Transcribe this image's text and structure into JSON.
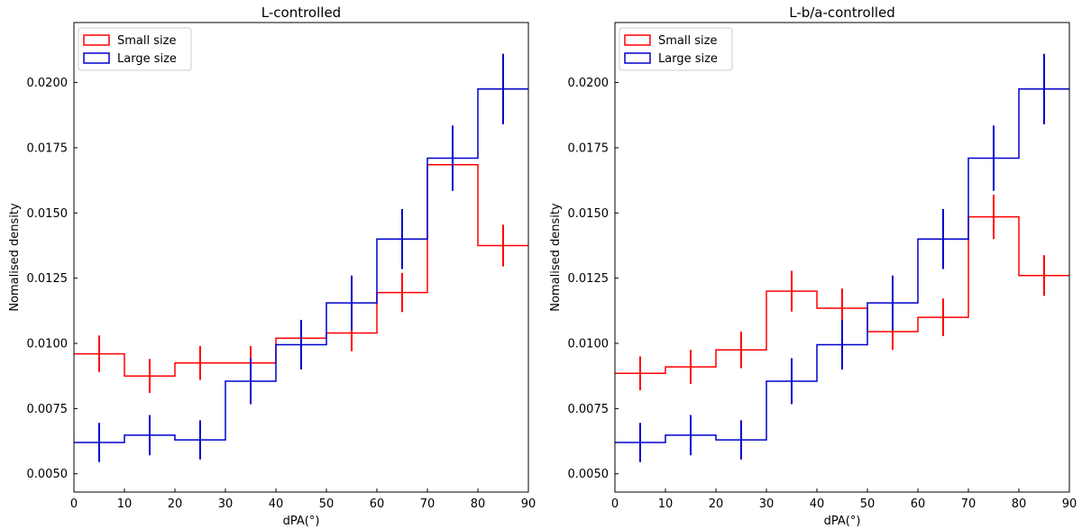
{
  "chart_data": [
    {
      "type": "step",
      "title": "L-controlled",
      "xlabel": "dPA(°)",
      "ylabel": "Nomalised density",
      "xlim": [
        0,
        90
      ],
      "ylim": [
        0.0043,
        0.0223
      ],
      "x_ticks": [
        "0",
        "10",
        "20",
        "30",
        "40",
        "50",
        "60",
        "70",
        "80",
        "90"
      ],
      "y_ticks": [
        "0.0050",
        "0.0075",
        "0.0100",
        "0.0125",
        "0.0150",
        "0.0175",
        "0.0200"
      ],
      "grid": false,
      "legend_position": "top-left",
      "bin_edges": [
        0,
        10,
        20,
        30,
        40,
        50,
        60,
        70,
        80,
        90
      ],
      "bin_centers": [
        5,
        15,
        25,
        35,
        45,
        55,
        65,
        75,
        85
      ],
      "series": [
        {
          "name": "Small size",
          "color": "#ff0000",
          "values": [
            0.0096,
            0.00875,
            0.00925,
            0.00925,
            0.0102,
            0.0104,
            0.01195,
            0.01685,
            0.01375
          ],
          "errors": [
            0.0007,
            0.00065,
            0.00065,
            0.00065,
            0.0007,
            0.0007,
            0.00075,
            0.0009,
            0.0008
          ]
        },
        {
          "name": "Large size",
          "color": "#0000cc",
          "values": [
            0.0062,
            0.00648,
            0.0063,
            0.00855,
            0.00995,
            0.01155,
            0.014,
            0.0171,
            0.01975
          ],
          "errors": [
            0.00075,
            0.00077,
            0.00075,
            0.00088,
            0.00095,
            0.00105,
            0.00115,
            0.00125,
            0.00135
          ]
        }
      ]
    },
    {
      "type": "step",
      "title": "L-b/a-controlled",
      "xlabel": "dPA(°)",
      "ylabel": "Nomalised density",
      "xlim": [
        0,
        90
      ],
      "ylim": [
        0.0043,
        0.0223
      ],
      "x_ticks": [
        "0",
        "10",
        "20",
        "30",
        "40",
        "50",
        "60",
        "70",
        "80",
        "90"
      ],
      "y_ticks": [
        "0.0050",
        "0.0075",
        "0.0100",
        "0.0125",
        "0.0150",
        "0.0175",
        "0.0200"
      ],
      "grid": false,
      "legend_position": "top-left",
      "bin_edges": [
        0,
        10,
        20,
        30,
        40,
        50,
        60,
        70,
        80,
        90
      ],
      "bin_centers": [
        5,
        15,
        25,
        35,
        45,
        55,
        65,
        75,
        85
      ],
      "series": [
        {
          "name": "Small size",
          "color": "#ff0000",
          "values": [
            0.00885,
            0.0091,
            0.00975,
            0.012,
            0.01135,
            0.01045,
            0.011,
            0.01485,
            0.0126
          ],
          "errors": [
            0.00065,
            0.00065,
            0.0007,
            0.00078,
            0.00075,
            0.0007,
            0.00072,
            0.00085,
            0.00078
          ]
        },
        {
          "name": "Large size",
          "color": "#0000cc",
          "values": [
            0.0062,
            0.00648,
            0.0063,
            0.00855,
            0.00995,
            0.01155,
            0.014,
            0.0171,
            0.01975
          ],
          "errors": [
            0.00075,
            0.00077,
            0.00075,
            0.00088,
            0.00095,
            0.00105,
            0.00115,
            0.00125,
            0.00135
          ]
        }
      ]
    }
  ]
}
